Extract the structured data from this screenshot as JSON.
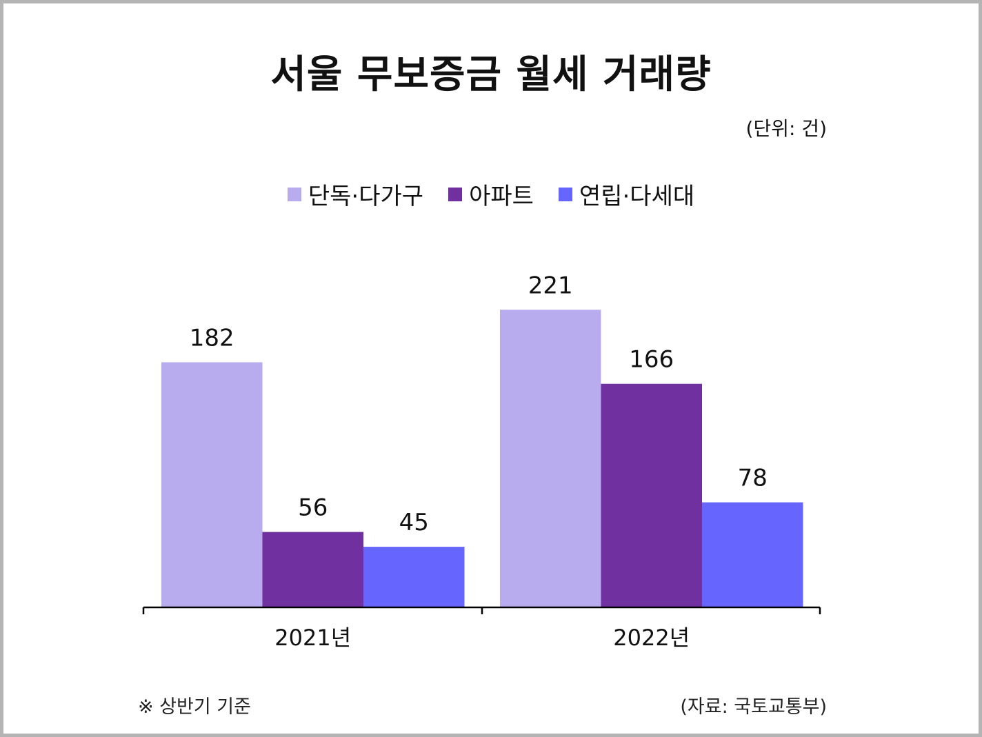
{
  "title": "서울 무보증금 월세 거래량",
  "unit_note": "(단위: 건)",
  "footnote": "※ 상반기 기준",
  "source": "(자료: 국토교통부)",
  "chart_data": {
    "type": "bar",
    "categories": [
      "2021년",
      "2022년"
    ],
    "series": [
      {
        "name": "단독·다가구",
        "values": [
          182,
          221
        ],
        "color": "#b8acee"
      },
      {
        "name": "아파트",
        "values": [
          56,
          166
        ],
        "color": "#7030a0"
      },
      {
        "name": "연립·다세대",
        "values": [
          45,
          78
        ],
        "color": "#6666ff"
      }
    ],
    "ylim": [
      0,
      221
    ],
    "grid": false,
    "legend_position": "top-center"
  }
}
